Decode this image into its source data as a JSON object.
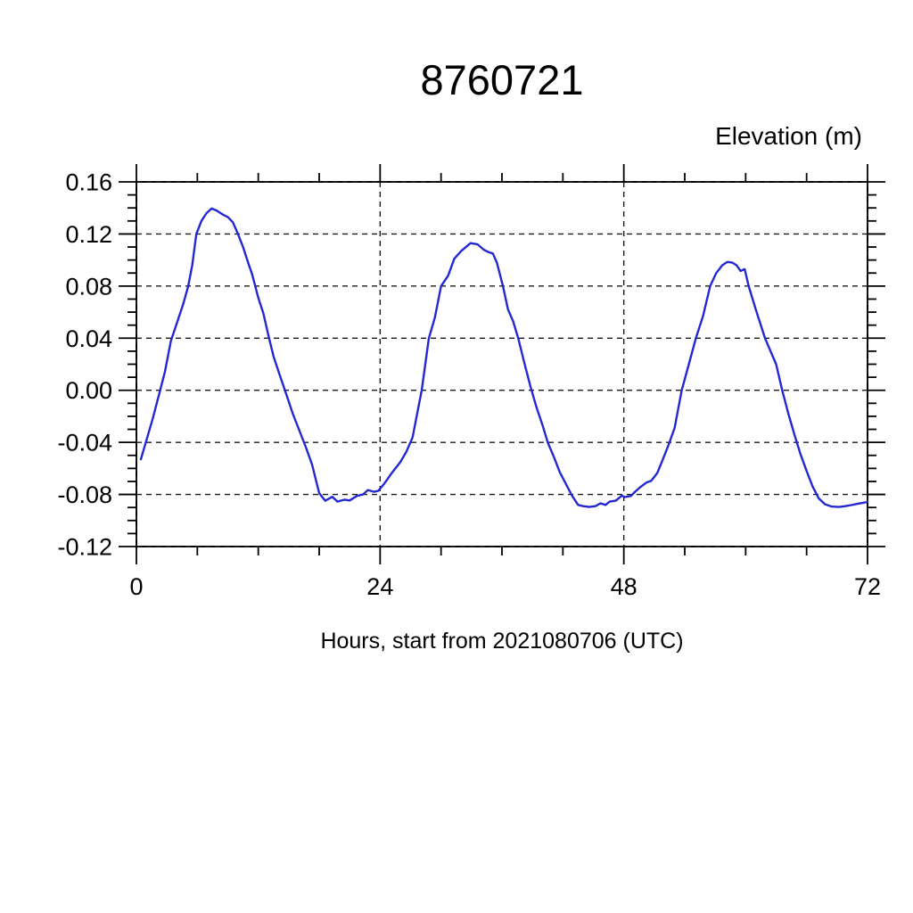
{
  "page": {
    "background": "#ffffff"
  },
  "chart_data": {
    "type": "line",
    "title": "8760721",
    "right_axis_label": "Elevation (m)",
    "xlabel": "Hours, start from 2021080706 (UTC)",
    "xlim": [
      0,
      72
    ],
    "ylim": [
      -0.12,
      0.16
    ],
    "x_major_ticks": [
      0,
      24,
      48,
      72
    ],
    "x_tick_labels": [
      "0",
      "24",
      "48",
      "72"
    ],
    "x_minor_tick_step": 6,
    "y_major_ticks": [
      0.16,
      0.12,
      0.08,
      0.04,
      0.0,
      -0.04,
      -0.08,
      -0.12
    ],
    "y_tick_labels": [
      "0.16",
      "0.12",
      "0.08",
      "0.04",
      "0.00",
      "-0.04",
      "-0.08",
      "-0.12"
    ],
    "y_minor_tick_step": 0.01,
    "grid": {
      "style": "dashed",
      "x_values": [
        0,
        24,
        48,
        72
      ],
      "y_values": [
        0.16,
        0.12,
        0.08,
        0.04,
        0.0,
        -0.04,
        -0.08,
        -0.12
      ]
    },
    "frame_color": "#000000",
    "grid_color": "#1a1a1a",
    "series": [
      {
        "name": "elevation",
        "color": "#2328d2",
        "points": [
          [
            0.44,
            -0.053
          ],
          [
            1.0,
            -0.038
          ],
          [
            1.6,
            -0.022
          ],
          [
            2.2,
            -0.004
          ],
          [
            2.8,
            0.014
          ],
          [
            3.4,
            0.038
          ],
          [
            4.0,
            0.052
          ],
          [
            4.6,
            0.066
          ],
          [
            5.1,
            0.08
          ],
          [
            5.5,
            0.096
          ],
          [
            5.9,
            0.12
          ],
          [
            6.4,
            0.13
          ],
          [
            6.9,
            0.136
          ],
          [
            7.4,
            0.1395
          ],
          [
            7.9,
            0.138
          ],
          [
            8.3,
            0.136
          ],
          [
            8.6,
            0.1345
          ],
          [
            9.0,
            0.133
          ],
          [
            9.5,
            0.129
          ],
          [
            10.0,
            0.12
          ],
          [
            10.5,
            0.11
          ],
          [
            11.0,
            0.098
          ],
          [
            11.4,
            0.089
          ],
          [
            12.0,
            0.071
          ],
          [
            12.5,
            0.059
          ],
          [
            13.0,
            0.042
          ],
          [
            13.5,
            0.026
          ],
          [
            14.1,
            0.012
          ],
          [
            14.8,
            -0.004
          ],
          [
            15.4,
            -0.018
          ],
          [
            16.1,
            -0.032
          ],
          [
            16.7,
            -0.044
          ],
          [
            17.3,
            -0.057
          ],
          [
            18.0,
            -0.079
          ],
          [
            18.6,
            -0.0848
          ],
          [
            19.3,
            -0.0818
          ],
          [
            19.8,
            -0.0855
          ],
          [
            20.5,
            -0.084
          ],
          [
            21.0,
            -0.0846
          ],
          [
            21.7,
            -0.0812
          ],
          [
            22.3,
            -0.08
          ],
          [
            22.8,
            -0.0766
          ],
          [
            23.4,
            -0.078
          ],
          [
            23.8,
            -0.0773
          ],
          [
            24.4,
            -0.0718
          ],
          [
            25.2,
            -0.063
          ],
          [
            26.0,
            -0.055
          ],
          [
            26.6,
            -0.047
          ],
          [
            27.2,
            -0.036
          ],
          [
            27.6,
            -0.02
          ],
          [
            28.1,
            0.0
          ],
          [
            28.8,
            0.04
          ],
          [
            29.4,
            0.056
          ],
          [
            30.0,
            0.08
          ],
          [
            30.7,
            0.088
          ],
          [
            31.3,
            0.101
          ],
          [
            32.0,
            0.107
          ],
          [
            32.9,
            0.113
          ],
          [
            33.6,
            0.112
          ],
          [
            34.2,
            0.108
          ],
          [
            34.7,
            0.106
          ],
          [
            35.1,
            0.105
          ],
          [
            35.5,
            0.098
          ],
          [
            36.1,
            0.08
          ],
          [
            36.6,
            0.062
          ],
          [
            37.1,
            0.053
          ],
          [
            37.6,
            0.04
          ],
          [
            38.2,
            0.021
          ],
          [
            38.8,
            0.003
          ],
          [
            39.4,
            -0.013
          ],
          [
            40.0,
            -0.027
          ],
          [
            40.5,
            -0.04
          ],
          [
            41.1,
            -0.051
          ],
          [
            41.7,
            -0.063
          ],
          [
            42.3,
            -0.072
          ],
          [
            42.9,
            -0.081
          ],
          [
            43.5,
            -0.088
          ],
          [
            44.0,
            -0.089
          ],
          [
            44.6,
            -0.0896
          ],
          [
            45.2,
            -0.089
          ],
          [
            45.7,
            -0.0868
          ],
          [
            46.2,
            -0.088
          ],
          [
            46.6,
            -0.0855
          ],
          [
            47.2,
            -0.0848
          ],
          [
            47.8,
            -0.081
          ],
          [
            48.1,
            -0.082
          ],
          [
            48.7,
            -0.0812
          ],
          [
            49.1,
            -0.078
          ],
          [
            49.6,
            -0.0745
          ],
          [
            50.2,
            -0.071
          ],
          [
            50.7,
            -0.0695
          ],
          [
            51.3,
            -0.0635
          ],
          [
            51.8,
            -0.054
          ],
          [
            52.4,
            -0.042
          ],
          [
            53.0,
            -0.029
          ],
          [
            53.7,
            0.0
          ],
          [
            54.4,
            0.02
          ],
          [
            55.1,
            0.04
          ],
          [
            55.8,
            0.057
          ],
          [
            56.5,
            0.08
          ],
          [
            57.1,
            0.09
          ],
          [
            57.7,
            0.096
          ],
          [
            58.2,
            0.0985
          ],
          [
            58.7,
            0.098
          ],
          [
            59.1,
            0.096
          ],
          [
            59.5,
            0.0916
          ],
          [
            59.9,
            0.093
          ],
          [
            60.3,
            0.08
          ],
          [
            61.0,
            0.062
          ],
          [
            61.9,
            0.04
          ],
          [
            63.0,
            0.02
          ],
          [
            63.6,
            0.0
          ],
          [
            64.2,
            -0.018
          ],
          [
            64.8,
            -0.034
          ],
          [
            65.4,
            -0.049
          ],
          [
            66.0,
            -0.062
          ],
          [
            66.6,
            -0.074
          ],
          [
            67.2,
            -0.083
          ],
          [
            67.8,
            -0.0875
          ],
          [
            68.5,
            -0.0893
          ],
          [
            69.2,
            -0.0896
          ],
          [
            69.8,
            -0.089
          ],
          [
            70.4,
            -0.0882
          ],
          [
            71.0,
            -0.0872
          ],
          [
            71.5,
            -0.0865
          ],
          [
            72.0,
            -0.0858
          ]
        ]
      }
    ]
  }
}
